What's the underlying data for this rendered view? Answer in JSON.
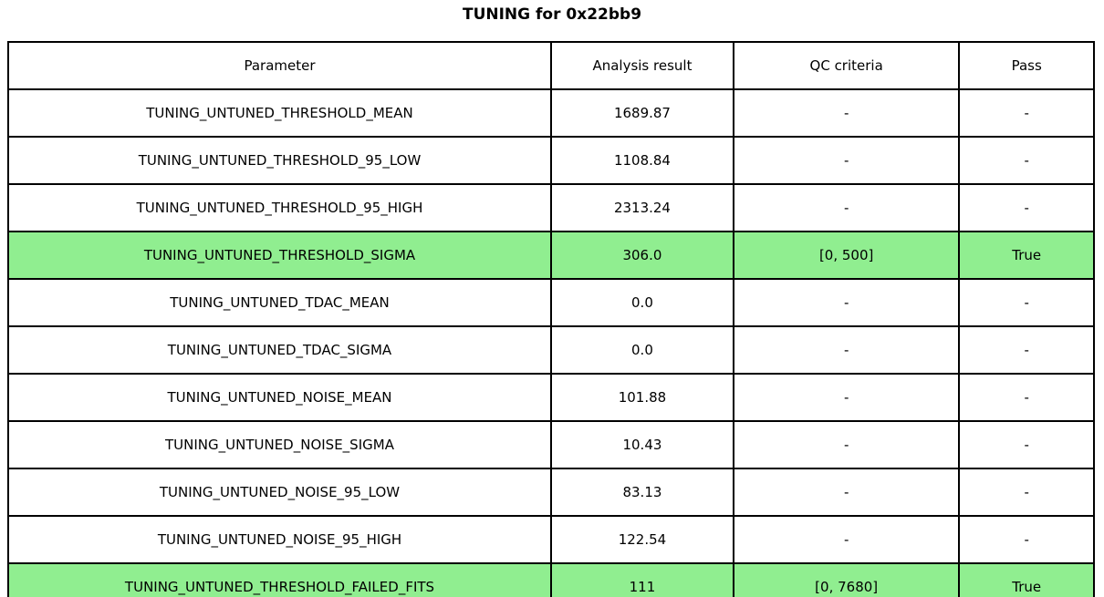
{
  "chart_data": {
    "type": "table",
    "title": "TUNING for 0x22bb9",
    "columns": [
      "Parameter",
      "Analysis result",
      "QC criteria",
      "Pass"
    ],
    "rows": [
      [
        "TUNING_UNTUNED_THRESHOLD_MEAN",
        "1689.87",
        "-",
        "-"
      ],
      [
        "TUNING_UNTUNED_THRESHOLD_95_LOW",
        "1108.84",
        "-",
        "-"
      ],
      [
        "TUNING_UNTUNED_THRESHOLD_95_HIGH",
        "2313.24",
        "-",
        "-"
      ],
      [
        "TUNING_UNTUNED_THRESHOLD_SIGMA",
        "306.0",
        "[0, 500]",
        "True"
      ],
      [
        "TUNING_UNTUNED_TDAC_MEAN",
        "0.0",
        "-",
        "-"
      ],
      [
        "TUNING_UNTUNED_TDAC_SIGMA",
        "0.0",
        "-",
        "-"
      ],
      [
        "TUNING_UNTUNED_NOISE_MEAN",
        "101.88",
        "-",
        "-"
      ],
      [
        "TUNING_UNTUNED_NOISE_SIGMA",
        "10.43",
        "-",
        "-"
      ],
      [
        "TUNING_UNTUNED_NOISE_95_LOW",
        "83.13",
        "-",
        "-"
      ],
      [
        "TUNING_UNTUNED_NOISE_95_HIGH",
        "122.54",
        "-",
        "-"
      ],
      [
        "TUNING_UNTUNED_THRESHOLD_FAILED_FITS",
        "111",
        "[0, 7680]",
        "True"
      ]
    ],
    "row_highlight": [
      false,
      false,
      false,
      true,
      false,
      false,
      false,
      false,
      false,
      false,
      true
    ],
    "highlight_color": "#90EE90",
    "border_color": "#000000",
    "background_color": "#ffffff",
    "grid": true,
    "legend": "none"
  }
}
